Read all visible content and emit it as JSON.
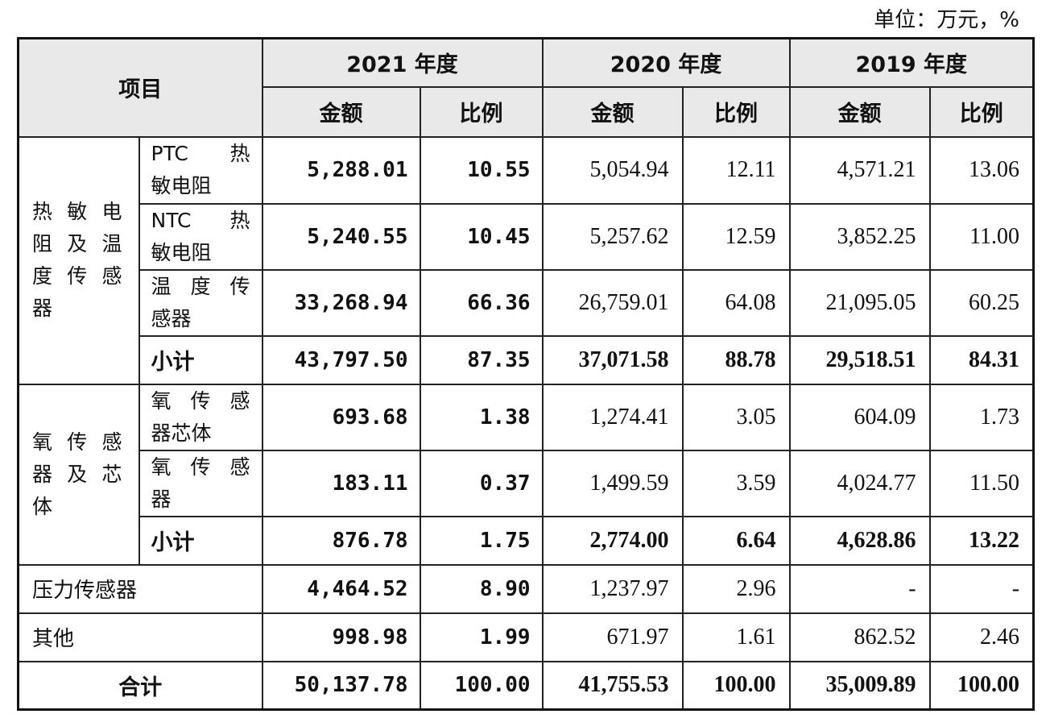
{
  "unit_label": "单位：万元，%",
  "header": {
    "item": "项目",
    "years": [
      "2021 年度",
      "2020 年度",
      "2019 年度"
    ],
    "amount": "金额",
    "ratio": "比例"
  },
  "groups": {
    "thermistor": {
      "category": [
        "热敏电",
        "阻及温",
        "度传感",
        "器"
      ],
      "rows": [
        {
          "label_lines": [
            "PTC 热",
            "敏电阻"
          ],
          "values": [
            "5,288.01",
            "10.55",
            "5,054.94",
            "12.11",
            "4,571.21",
            "13.06"
          ]
        },
        {
          "label_lines": [
            "NTC 热",
            "敏电阻"
          ],
          "values": [
            "5,240.55",
            "10.45",
            "5,257.62",
            "12.59",
            "3,852.25",
            "11.00"
          ]
        },
        {
          "label_lines": [
            "温度传",
            "感器"
          ],
          "values": [
            "33,268.94",
            "66.36",
            "26,759.01",
            "64.08",
            "21,095.05",
            "60.25"
          ]
        }
      ],
      "subtotal": {
        "label": "小计",
        "values": [
          "43,797.50",
          "87.35",
          "37,071.58",
          "88.78",
          "29,518.51",
          "84.31"
        ]
      }
    },
    "oxygen": {
      "category": [
        "氧传感",
        "器及芯",
        "体"
      ],
      "rows": [
        {
          "label_lines": [
            "氧传感",
            "器芯体"
          ],
          "values": [
            "693.68",
            "1.38",
            "1,274.41",
            "3.05",
            "604.09",
            "1.73"
          ]
        },
        {
          "label_lines": [
            "氧传感",
            "器"
          ],
          "values": [
            "183.11",
            "0.37",
            "1,499.59",
            "3.59",
            "4,024.77",
            "11.50"
          ]
        }
      ],
      "subtotal": {
        "label": "小计",
        "values": [
          "876.78",
          "1.75",
          "2,774.00",
          "6.64",
          "4,628.86",
          "13.22"
        ]
      }
    }
  },
  "pressure": {
    "label": "压力传感器",
    "values": [
      "4,464.52",
      "8.90",
      "1,237.97",
      "2.96",
      "-",
      "-"
    ]
  },
  "other": {
    "label": "其他",
    "values": [
      "998.98",
      "1.99",
      "671.97",
      "1.61",
      "862.52",
      "2.46"
    ]
  },
  "total": {
    "label": "合计",
    "values": [
      "50,137.78",
      "100.00",
      "41,755.53",
      "100.00",
      "35,009.89",
      "100.00"
    ]
  }
}
